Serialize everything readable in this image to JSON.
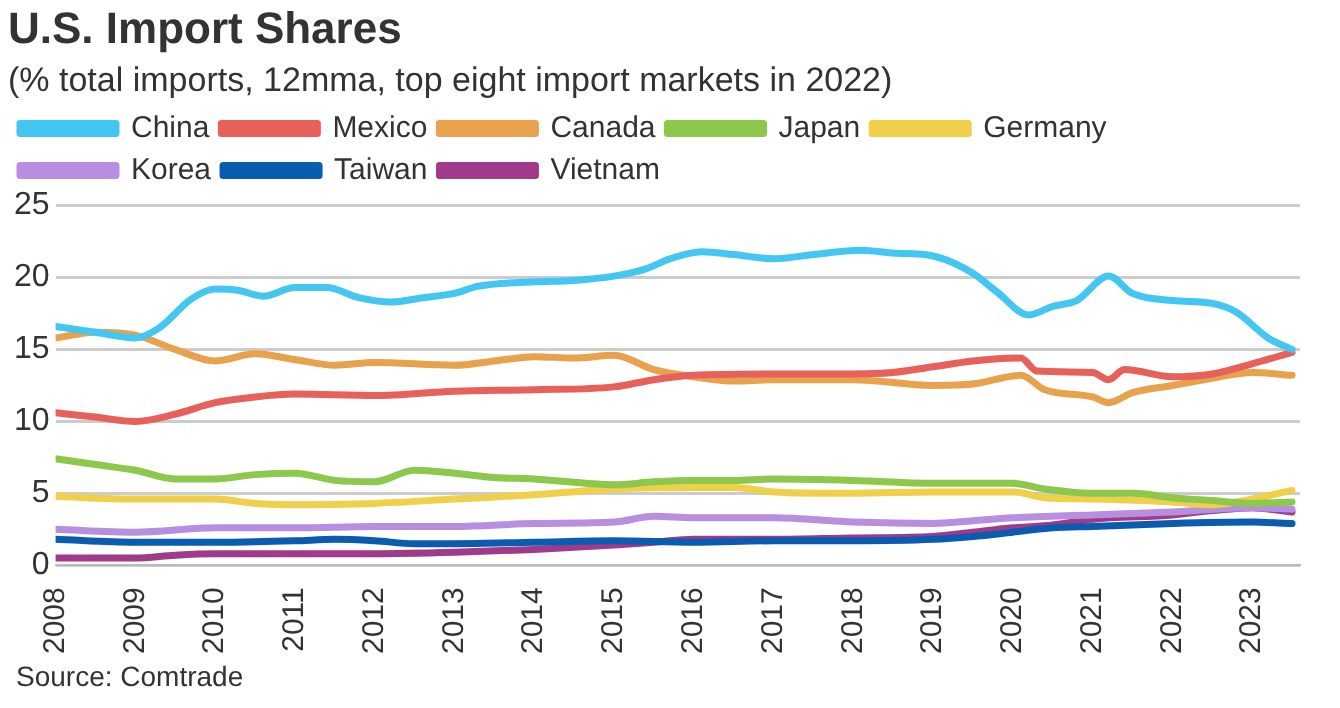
{
  "chart_data": {
    "type": "line",
    "title": "U.S. Import Shares",
    "subtitle": "(% total imports, 12mma, top eight import markets in 2022)",
    "annotations": [
      "Source: Comtrade"
    ],
    "xlim": [
      2008,
      2023.6
    ],
    "xticks": [
      2008,
      2009,
      2010,
      2011,
      2012,
      2013,
      2014,
      2015,
      2016,
      2017,
      2018,
      2019,
      2020,
      2021,
      2022,
      2023
    ],
    "ylim": [
      0,
      25
    ],
    "yticks": [
      0,
      5,
      10,
      15,
      20,
      25
    ],
    "grid": "y",
    "legend": "top",
    "marker": "none",
    "line_style": "solid",
    "series": [
      {
        "name": "China",
        "color": "#44c6f2",
        "x": [
          2008,
          2008.5,
          2009,
          2009.3,
          2009.7,
          2010,
          2010.3,
          2010.6,
          2011,
          2011.4,
          2011.8,
          2012.2,
          2012.6,
          2013,
          2013.3,
          2014,
          2014.5,
          2015,
          2015.4,
          2015.7,
          2016.1,
          2016.5,
          2017,
          2017.5,
          2018.1,
          2018.5,
          2019,
          2019.5,
          2019.8,
          2020.2,
          2020.5,
          2020.8,
          2021.2,
          2021.5,
          2022,
          2022.5,
          2022.8,
          2023.2,
          2023.5
        ],
        "values": [
          16.6,
          16.2,
          15.8,
          16.5,
          18.5,
          19.2,
          19.1,
          18.7,
          19.3,
          19.3,
          18.6,
          18.3,
          18.6,
          18.9,
          19.4,
          19.7,
          19.8,
          20.1,
          20.6,
          21.3,
          21.8,
          21.6,
          21.3,
          21.6,
          21.9,
          21.7,
          21.5,
          20.3,
          19.0,
          17.4,
          18.0,
          18.4,
          20.1,
          18.9,
          18.4,
          18.2,
          17.6,
          15.8,
          15.0
        ]
      },
      {
        "name": "Mexico",
        "color": "#e8605a",
        "x": [
          2008,
          2008.5,
          2009,
          2009.5,
          2010,
          2010.5,
          2011,
          2012,
          2013,
          2014,
          2015,
          2015.5,
          2016,
          2017,
          2018,
          2018.5,
          2019,
          2019.5,
          2020.1,
          2020.3,
          2021,
          2021.2,
          2021.4,
          2022,
          2022.5,
          2023,
          2023.5
        ],
        "values": [
          10.6,
          10.3,
          10.0,
          10.5,
          11.3,
          11.7,
          11.9,
          11.8,
          12.1,
          12.2,
          12.4,
          12.9,
          13.2,
          13.3,
          13.3,
          13.4,
          13.8,
          14.2,
          14.4,
          13.5,
          13.4,
          12.9,
          13.6,
          13.1,
          13.3,
          14.0,
          14.8
        ]
      },
      {
        "name": "Canada",
        "color": "#e8a24e",
        "x": [
          2008,
          2008.5,
          2009,
          2009.5,
          2010,
          2010.5,
          2011,
          2011.5,
          2012,
          2013,
          2013.5,
          2014,
          2014.5,
          2015,
          2015.5,
          2016,
          2016.5,
          2017,
          2018,
          2019,
          2019.5,
          2020.1,
          2020.4,
          2021,
          2021.2,
          2021.5,
          2022,
          2022.5,
          2023,
          2023.5
        ],
        "values": [
          15.8,
          16.2,
          16.0,
          15.0,
          14.2,
          14.7,
          14.3,
          13.9,
          14.1,
          13.9,
          14.2,
          14.5,
          14.4,
          14.6,
          13.6,
          13.1,
          12.8,
          12.9,
          12.9,
          12.5,
          12.6,
          13.2,
          12.2,
          11.7,
          11.3,
          12.0,
          12.5,
          13.0,
          13.4,
          13.2
        ]
      },
      {
        "name": "Japan",
        "color": "#8cc84b",
        "x": [
          2008,
          2008.5,
          2009,
          2009.5,
          2010,
          2010.5,
          2011,
          2011.5,
          2012,
          2012.5,
          2013,
          2013.5,
          2014,
          2015,
          2015.5,
          2016,
          2016.5,
          2017,
          2018,
          2019,
          2020,
          2020.4,
          2021,
          2021.5,
          2022,
          2022.5,
          2023,
          2023.5
        ],
        "values": [
          7.4,
          7.0,
          6.6,
          6.0,
          6.0,
          6.3,
          6.4,
          5.9,
          5.8,
          6.6,
          6.4,
          6.1,
          6.0,
          5.6,
          5.8,
          5.9,
          5.9,
          6.0,
          5.9,
          5.7,
          5.7,
          5.3,
          5.0,
          5.0,
          4.7,
          4.5,
          4.3,
          4.4
        ]
      },
      {
        "name": "Germany",
        "color": "#f0cf4a",
        "x": [
          2008,
          2009,
          2009.5,
          2010,
          2010.5,
          2011,
          2012,
          2013,
          2014,
          2015,
          2016,
          2016.5,
          2017,
          2018,
          2019,
          2020,
          2020.4,
          2021,
          2022,
          2022.5,
          2023,
          2023.5
        ],
        "values": [
          4.8,
          4.6,
          4.6,
          4.6,
          4.3,
          4.2,
          4.3,
          4.6,
          4.9,
          5.3,
          5.4,
          5.4,
          5.1,
          5.0,
          5.1,
          5.1,
          4.7,
          4.6,
          4.4,
          4.2,
          4.6,
          5.2
        ]
      },
      {
        "name": "Korea",
        "color": "#b78ee0",
        "x": [
          2008,
          2009,
          2010,
          2011,
          2012,
          2013,
          2014,
          2015,
          2015.5,
          2016,
          2017,
          2018,
          2019,
          2019.5,
          2020,
          2021,
          2022,
          2023,
          2023.5
        ],
        "values": [
          2.5,
          2.3,
          2.6,
          2.6,
          2.7,
          2.7,
          2.9,
          3.0,
          3.4,
          3.3,
          3.3,
          3.0,
          2.9,
          3.1,
          3.3,
          3.5,
          3.7,
          4.0,
          3.9
        ]
      },
      {
        "name": "Taiwan",
        "color": "#0a5cb0",
        "x": [
          2008,
          2009,
          2010,
          2011,
          2011.5,
          2012,
          2012.5,
          2013,
          2014,
          2015,
          2016,
          2017,
          2018,
          2019,
          2019.5,
          2020,
          2020.5,
          2021,
          2022,
          2023,
          2023.5
        ],
        "values": [
          1.8,
          1.6,
          1.6,
          1.7,
          1.8,
          1.7,
          1.5,
          1.5,
          1.6,
          1.7,
          1.6,
          1.7,
          1.7,
          1.8,
          2.0,
          2.3,
          2.6,
          2.7,
          2.9,
          3.0,
          2.9
        ]
      },
      {
        "name": "Vietnam",
        "color": "#a03a8a",
        "x": [
          2008,
          2009,
          2009.5,
          2010,
          2011,
          2012,
          2013,
          2014,
          2015,
          2015.5,
          2016,
          2017,
          2018,
          2019,
          2019.5,
          2020,
          2020.5,
          2021,
          2022,
          2022.5,
          2023,
          2023.5
        ],
        "values": [
          0.5,
          0.5,
          0.7,
          0.8,
          0.8,
          0.8,
          0.9,
          1.1,
          1.4,
          1.6,
          1.8,
          1.8,
          1.9,
          2.0,
          2.3,
          2.6,
          2.8,
          3.2,
          3.5,
          3.8,
          4.0,
          3.7
        ]
      }
    ]
  }
}
